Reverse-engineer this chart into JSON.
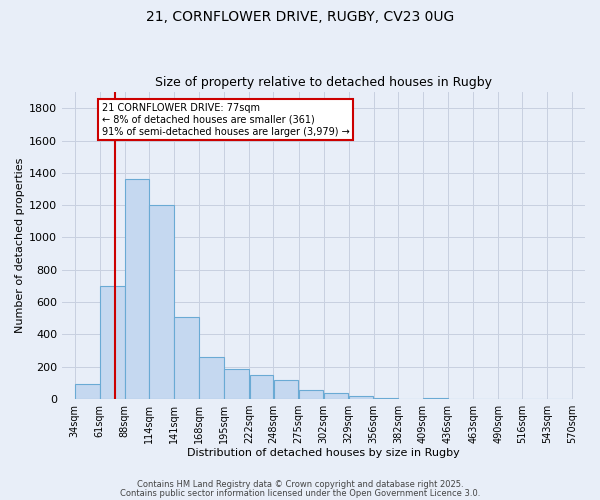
{
  "title1": "21, CORNFLOWER DRIVE, RUGBY, CV23 0UG",
  "title2": "Size of property relative to detached houses in Rugby",
  "xlabel": "Distribution of detached houses by size in Rugby",
  "ylabel": "Number of detached properties",
  "bar_labels": [
    "34sqm",
    "61sqm",
    "88sqm",
    "114sqm",
    "141sqm",
    "168sqm",
    "195sqm",
    "222sqm",
    "248sqm",
    "275sqm",
    "302sqm",
    "329sqm",
    "356sqm",
    "382sqm",
    "409sqm",
    "436sqm",
    "463sqm",
    "490sqm",
    "516sqm",
    "543sqm",
    "570sqm"
  ],
  "bar_values": [
    90,
    700,
    1360,
    1200,
    510,
    260,
    185,
    150,
    120,
    55,
    35,
    20,
    5,
    0,
    5,
    0,
    0,
    0,
    0,
    0,
    0
  ],
  "bar_color": "#c5d8f0",
  "bar_edge_color": "#6aaad4",
  "background_color": "#e8eef8",
  "grid_color": "#c8d0e0",
  "vline_x": 77,
  "annotation_text": "21 CORNFLOWER DRIVE: 77sqm\n← 8% of detached houses are smaller (361)\n91% of semi-detached houses are larger (3,979) →",
  "annotation_box_color": "#ffffff",
  "annotation_box_edge": "#cc0000",
  "vline_color": "#cc0000",
  "footer1": "Contains HM Land Registry data © Crown copyright and database right 2025.",
  "footer2": "Contains public sector information licensed under the Open Government Licence 3.0.",
  "ylim": [
    0,
    1900
  ],
  "yticks": [
    0,
    200,
    400,
    600,
    800,
    1000,
    1200,
    1400,
    1600,
    1800
  ]
}
